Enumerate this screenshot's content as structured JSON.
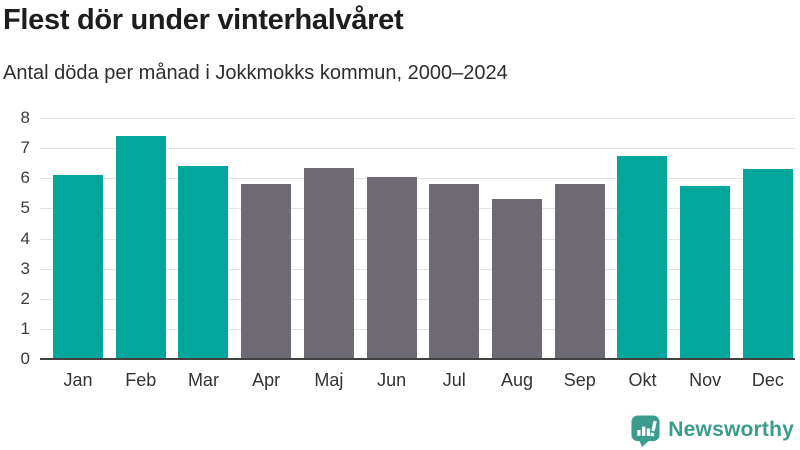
{
  "header": {
    "title": "Flest dör under vinterhalvåret",
    "subtitle": "Antal döda per månad i Jokkmokks kommun, 2000–2024"
  },
  "chart_data": {
    "type": "bar",
    "title": "Flest dör under vinterhalvåret",
    "subtitle": "Antal döda per månad i Jokkmokks kommun, 2000–2024",
    "categories": [
      "Jan",
      "Feb",
      "Mar",
      "Apr",
      "Maj",
      "Jun",
      "Jul",
      "Aug",
      "Sep",
      "Okt",
      "Nov",
      "Dec"
    ],
    "values": [
      6.1,
      7.4,
      6.4,
      5.8,
      6.35,
      6.05,
      5.8,
      5.3,
      5.8,
      6.75,
      5.75,
      6.3
    ],
    "bar_colors": [
      "#03a69b",
      "#03a69b",
      "#03a69b",
      "#6d6a73",
      "#6d6a73",
      "#6d6a73",
      "#6d6a73",
      "#6d6a73",
      "#6d6a73",
      "#03a69b",
      "#03a69b",
      "#03a69b"
    ],
    "xlabel": "",
    "ylabel": "",
    "ylim": [
      0,
      8
    ],
    "yticks": [
      0,
      1,
      2,
      3,
      4,
      5,
      6,
      7,
      8
    ],
    "grid": true,
    "legend": "none",
    "colors": {
      "highlight": "#03a69b",
      "muted": "#6d6a73",
      "gridline": "#e4e4e4",
      "axis_line": "#404040"
    }
  },
  "branding": {
    "logo_text": "Newsworthy",
    "logo_color": "#3b9c8d"
  }
}
